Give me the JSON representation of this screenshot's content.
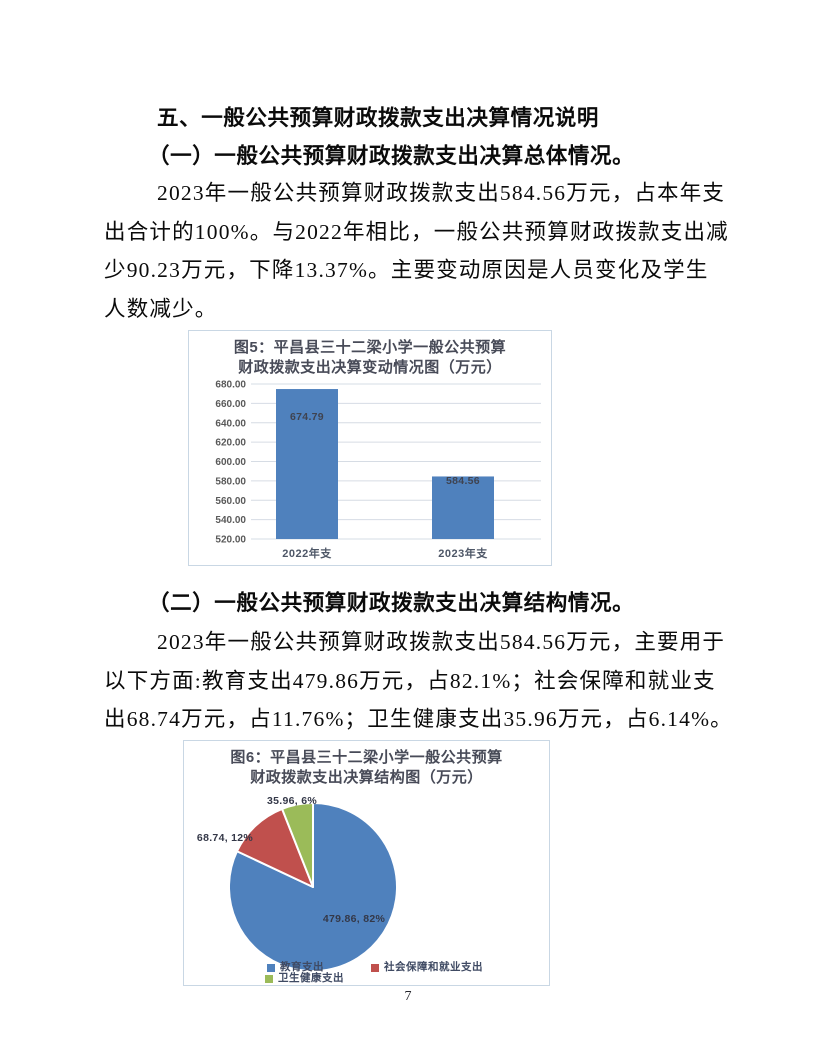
{
  "document": {
    "heading": "五、一般公共预算财政拨款支出决算情况说明",
    "section1": {
      "heading": "（一）一般公共预算财政拨款支出决算总体情况。",
      "lines": [
        "2023年一般公共预算财政拨款支出584.56万元，占本年支",
        "出合计的100%。与2022年相比，一般公共预算财政拨款支出减",
        "少90.23万元，下降13.37%。主要变动原因是人员变化及学生",
        "人数减少。"
      ]
    },
    "section2": {
      "heading": "（二）一般公共预算财政拨款支出决算结构情况。",
      "lines": [
        "2023年一般公共预算财政拨款支出584.56万元，主要用于",
        "以下方面:教育支出479.86万元，占82.1%；社会保障和就业支",
        "出68.74万元，占11.76%；卫生健康支出35.96万元，占6.14%。"
      ]
    },
    "page_number": "7"
  },
  "chart_data": [
    {
      "type": "bar",
      "figure_label": "图5",
      "title": "图5：平昌县三十二梁小学一般公共预算财政拨款支出决算变动情况图（万元）",
      "title_lines": [
        "图5：平昌县三十二梁小学一般公共预算",
        "财政拨款支出决算变动情况图（万元）"
      ],
      "categories": [
        "2022年支",
        "2023年支"
      ],
      "values": [
        674.79,
        584.56
      ],
      "data_labels": [
        "674.79",
        "584.56"
      ],
      "ylim": [
        520,
        680
      ],
      "ytick_step": 20,
      "grid": true,
      "legend": "none",
      "bar_color": "#4f81bd",
      "unit": "万元"
    },
    {
      "type": "pie",
      "figure_label": "图6",
      "title": "图6：平昌县三十二梁小学一般公共预算财政拨款支出决算结构图（万元）",
      "title_lines": [
        "图6：平昌县三十二梁小学一般公共预算",
        "财政拨款支出决算结构图（万元）"
      ],
      "series": [
        {
          "name": "教育支出",
          "value": 479.86,
          "percent": 82,
          "label": "479.86, 82%",
          "color": "#4f81bd"
        },
        {
          "name": "社会保障和就业支出",
          "value": 68.74,
          "percent": 12,
          "label": "68.74, 12%",
          "color": "#c0504d"
        },
        {
          "name": "卫生健康支出",
          "value": 35.96,
          "percent": 6,
          "label": "35.96, 6%",
          "color": "#9bbb59"
        }
      ],
      "start_angle": "top",
      "direction": "clockwise",
      "legend_position": "bottom",
      "unit": "万元"
    }
  ],
  "colors": {
    "bar_blue": "#4f81bd",
    "pie_red": "#c0504d",
    "pie_green": "#9bbb59",
    "chart_title": "#484b58",
    "axis_label": "#595959",
    "data_label": "#3f4350",
    "category_label": "#4e5767",
    "legend_text": "#3f4a63",
    "figure_border": "#c9d7e4",
    "gridline": "#d6dce4"
  }
}
